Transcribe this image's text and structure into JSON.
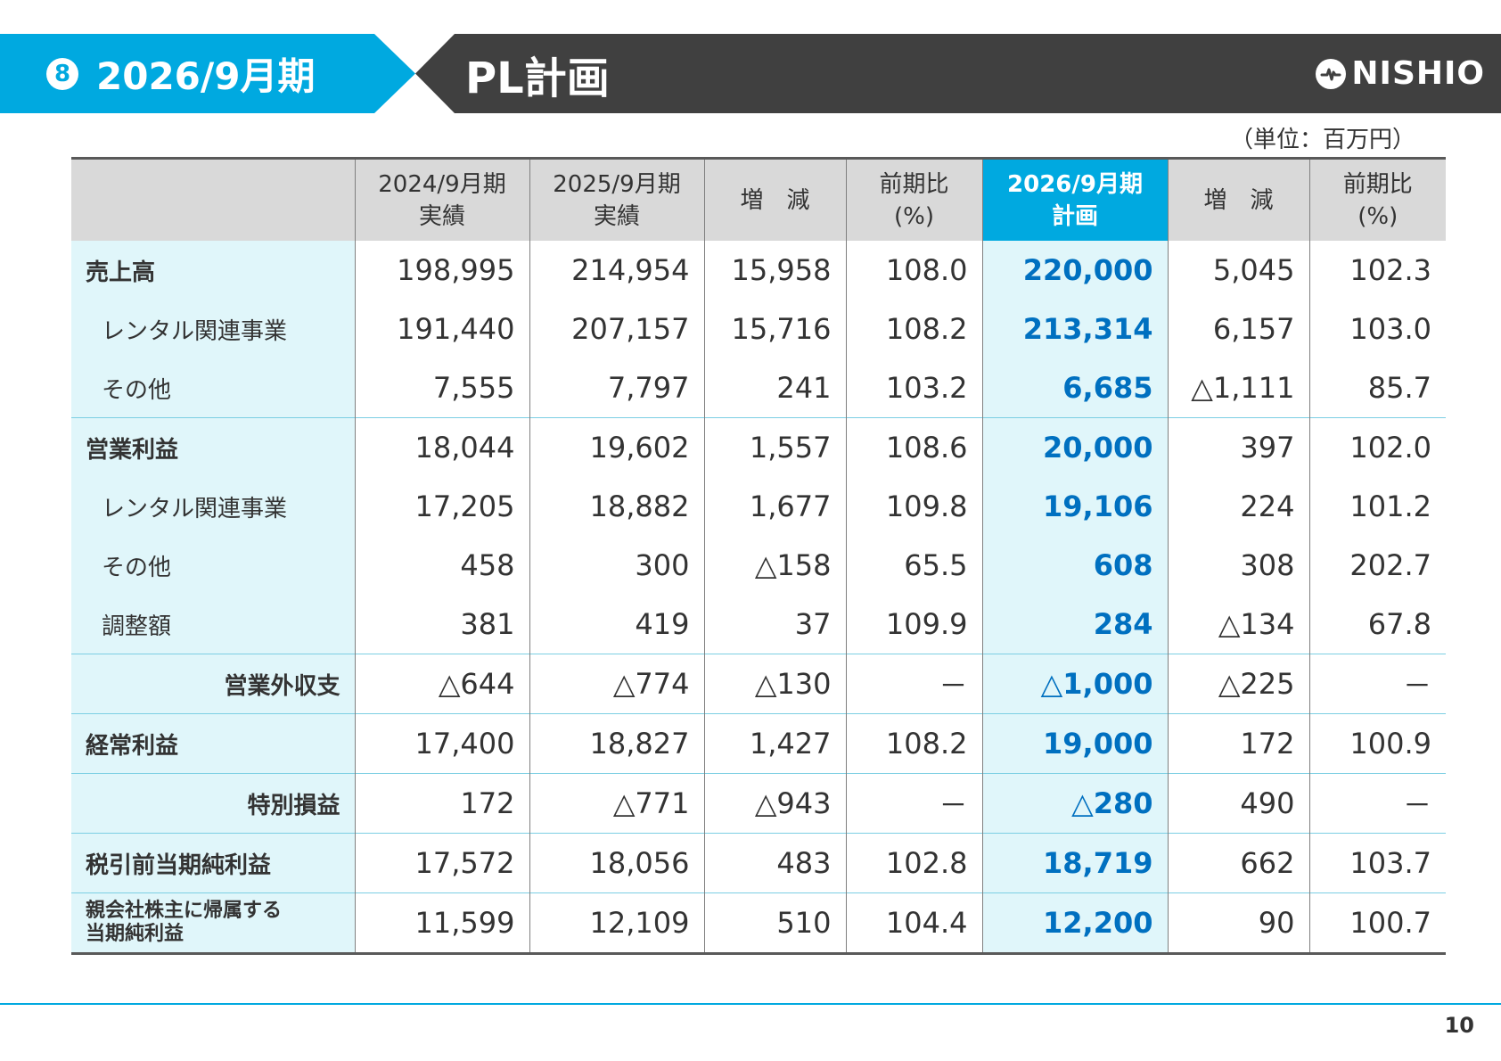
{
  "header": {
    "section_number": "8",
    "section_label": "2026/9月期",
    "title": "PL計画",
    "logo_text": "NISHIO"
  },
  "unit": "（単位：百万円）",
  "table": {
    "columns": [
      {
        "line1": "",
        "line2": ""
      },
      {
        "line1": "2024/9月期",
        "line2": "実績"
      },
      {
        "line1": "2025/9月期",
        "line2": "実績"
      },
      {
        "line1": "増　減",
        "line2": ""
      },
      {
        "line1": "前期比",
        "line2": "(%)"
      },
      {
        "line1": "2026/9月期",
        "line2": "計画"
      },
      {
        "line1": "増　減",
        "line2": ""
      },
      {
        "line1": "前期比",
        "line2": "(%)"
      }
    ],
    "rows": [
      {
        "label": "売上高",
        "values": [
          "198,995",
          "214,954",
          "15,958",
          "108.0",
          "220,000",
          "5,045",
          "102.3"
        ]
      },
      {
        "label": "レンタル関連事業",
        "values": [
          "191,440",
          "207,157",
          "15,716",
          "108.2",
          "213,314",
          "6,157",
          "103.0"
        ]
      },
      {
        "label": "その他",
        "values": [
          "7,555",
          "7,797",
          "241",
          "103.2",
          "6,685",
          "△1,111",
          "85.7"
        ]
      },
      {
        "label": "営業利益",
        "values": [
          "18,044",
          "19,602",
          "1,557",
          "108.6",
          "20,000",
          "397",
          "102.0"
        ]
      },
      {
        "label": "レンタル関連事業",
        "values": [
          "17,205",
          "18,882",
          "1,677",
          "109.8",
          "19,106",
          "224",
          "101.2"
        ]
      },
      {
        "label": "その他",
        "values": [
          "458",
          "300",
          "△158",
          "65.5",
          "608",
          "308",
          "202.7"
        ]
      },
      {
        "label": "調整額",
        "values": [
          "381",
          "419",
          "37",
          "109.9",
          "284",
          "△134",
          "67.8"
        ]
      },
      {
        "label": "営業外収支",
        "values": [
          "△644",
          "△774",
          "△130",
          "－",
          "△1,000",
          "△225",
          "－"
        ]
      },
      {
        "label": "経常利益",
        "values": [
          "17,400",
          "18,827",
          "1,427",
          "108.2",
          "19,000",
          "172",
          "100.9"
        ]
      },
      {
        "label": "特別損益",
        "values": [
          "172",
          "△771",
          "△943",
          "－",
          "△280",
          "490",
          "－"
        ]
      },
      {
        "label": "税引前当期純利益",
        "values": [
          "17,572",
          "18,056",
          "483",
          "102.8",
          "18,719",
          "662",
          "103.7"
        ]
      },
      {
        "label": "親会社株主に帰属する",
        "label2": "当期純利益",
        "values": [
          "11,599",
          "12,109",
          "510",
          "104.4",
          "12,200",
          "90",
          "100.7"
        ]
      }
    ]
  },
  "page_number": "10",
  "colors": {
    "accent": "#00a9e0",
    "header_dark": "#404040",
    "row_tint": "#e0f6fa",
    "plan_text": "#0070c0"
  }
}
